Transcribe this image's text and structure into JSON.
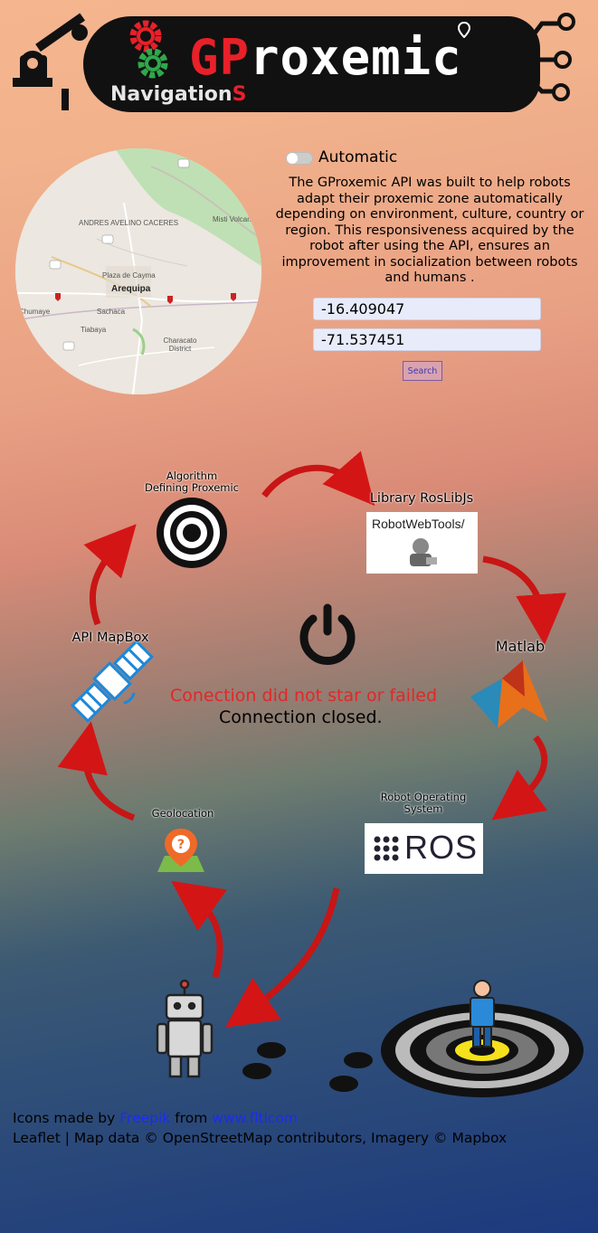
{
  "header": {
    "title_gp": "GP",
    "title_rest": "roxemic",
    "subtitle_main": "Navigation",
    "subtitle_end": "S",
    "logo_icons": [
      "gear-icon",
      "robot-arm-icon",
      "circuit-icon"
    ],
    "colors": {
      "accent": "#e8202a",
      "pill": "#111111"
    }
  },
  "map": {
    "labels": {
      "city": "Arequipa",
      "plaza": "Plaza de Cayma",
      "sachaca": "Sachaca",
      "tiabaya": "Tiabaya",
      "characato": "Characato District",
      "andres": "ANDRES AVELINO CACERES",
      "chumaye": "Chumaye",
      "misti": "Misti Volcano"
    },
    "route_shields": [
      "116",
      "116",
      "116",
      "34A",
      "34C",
      "34C",
      "34A",
      "113"
    ]
  },
  "controls": {
    "toggle_label": "Automatic",
    "toggle_on": false,
    "description": "The GProxemic API was built to help robots adapt their proxemic zone automatically depending on environment, culture, country or region. This responsiveness acquired by the robot after using the API, ensures an improvement in socialization between robots and humans .",
    "latitude": "-16.409047",
    "longitude": "-71.537451",
    "search_label": "Search"
  },
  "diagram": {
    "algorithm_label": "Algorithm Defining Proxemic",
    "library_label": "Library RosLibJs",
    "rwt_text": "RobotWebTools/",
    "matlab_label": "Matlab",
    "ros_system_label": "Robot Operating System",
    "ros_logo_text": "ROS",
    "mapbox_label": "API MapBox",
    "geolocation_label": "Geolocation",
    "status_fail": "Conection did not star or failed",
    "status_closed": "Connection closed.",
    "icons": [
      "target-icon",
      "satellite-icon",
      "power-icon",
      "matlab-icon",
      "location-pin-icon",
      "robot-icon",
      "footprints-icon",
      "person-on-target-icon",
      "arrow-icon"
    ],
    "arrow_color": "#d41515"
  },
  "credits": {
    "icons_prefix": "Icons made by",
    "freepik": "Freepik",
    "from": "from",
    "site": "www.flticom",
    "leaflet": "Leaflet | Map data © OpenStreetMap contributors, Imagery © Mapbox"
  }
}
